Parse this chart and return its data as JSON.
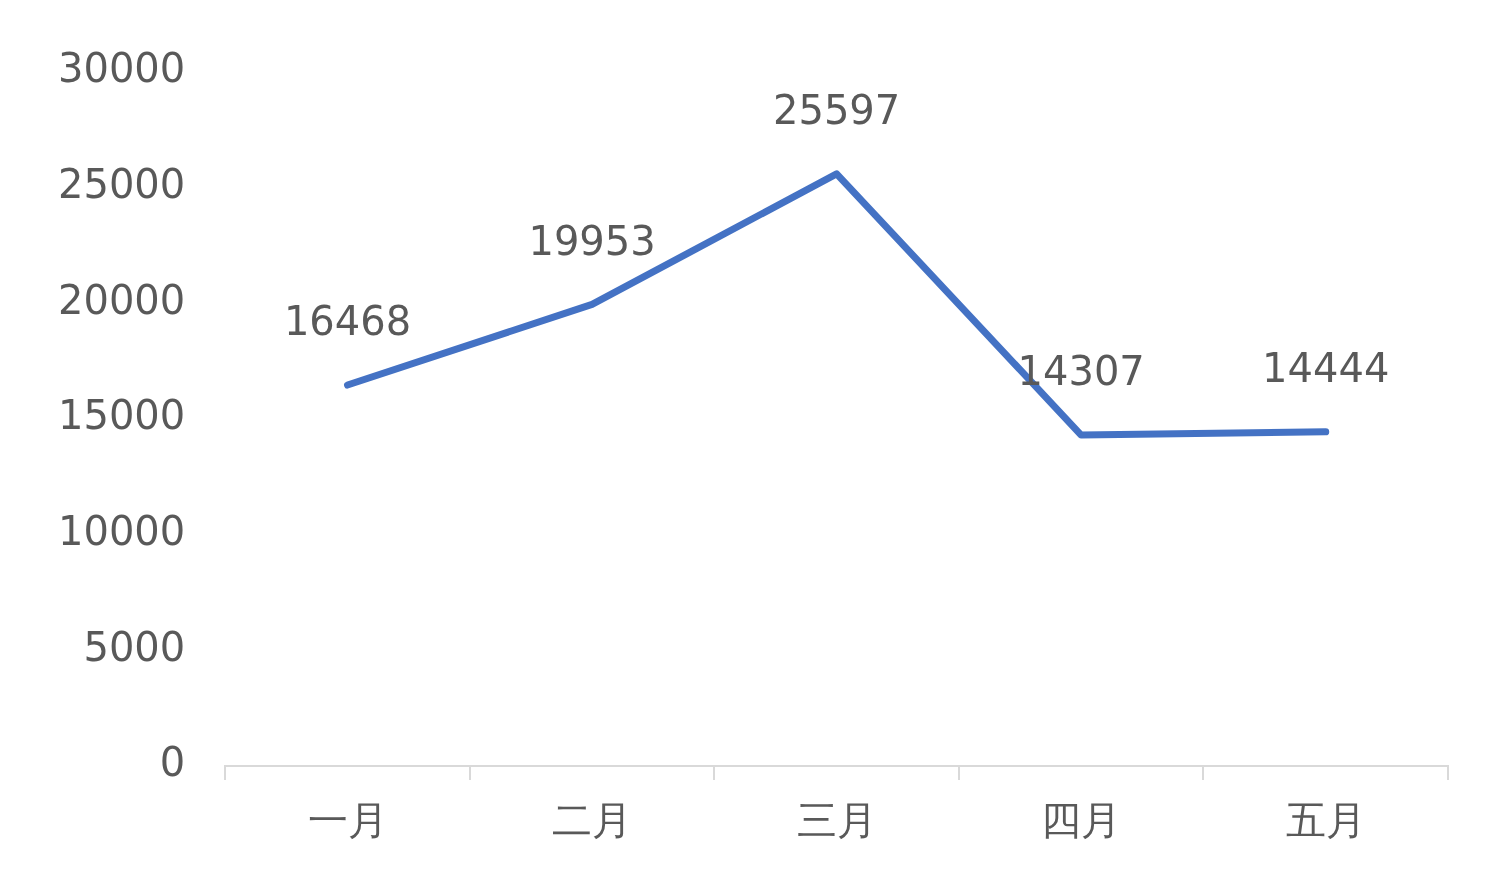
{
  "chart_data": {
    "type": "line",
    "categories": [
      "一月",
      "二月",
      "三月",
      "四月",
      "五月"
    ],
    "series": [
      {
        "color": "#4472c4",
        "values": [
          16468,
          19953,
          25597,
          14307,
          14444
        ]
      }
    ],
    "ylim": [
      0,
      30000
    ],
    "yticks": [
      0,
      5000,
      10000,
      15000,
      20000,
      25000,
      30000
    ],
    "grid": false,
    "legend": false,
    "marker": "none",
    "line_style": "solid",
    "data_labels": true
  }
}
